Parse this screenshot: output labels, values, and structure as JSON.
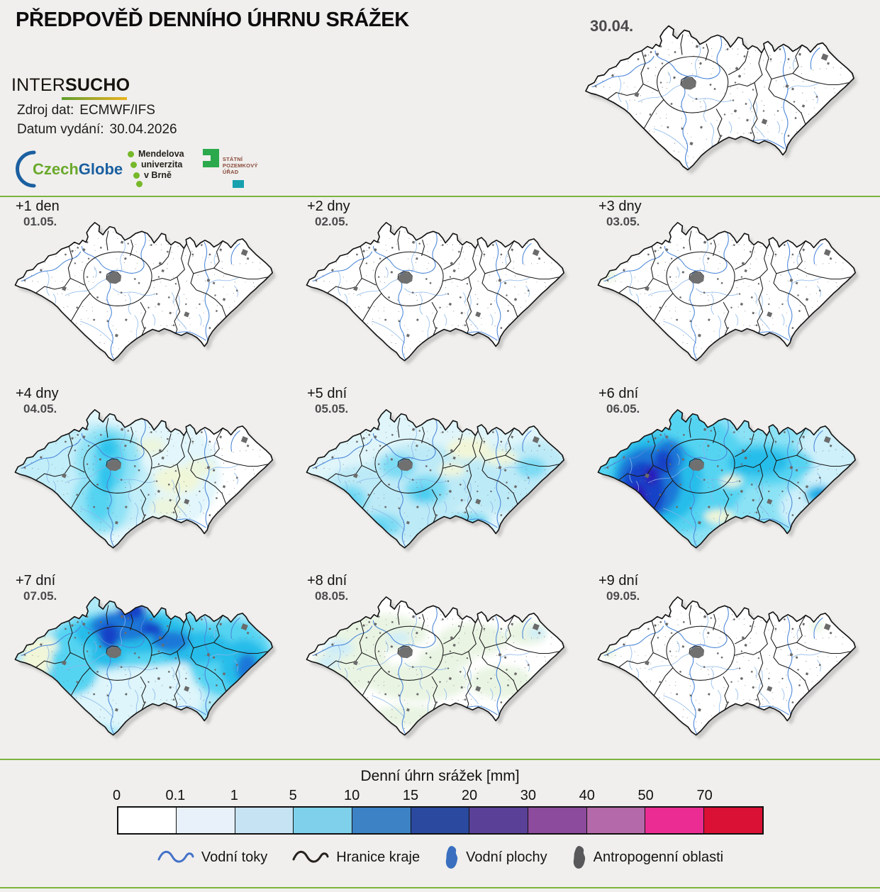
{
  "header": {
    "title": "PŘEDPOVĚĎ DENNÍHO ÚHRNU SRÁŽEK",
    "brand": {
      "inter": "INTER",
      "sucho": "SUCHO"
    },
    "source_label": "Zdroj dat:",
    "source_value": "ECMWF/IFS",
    "issue_label": "Datum vydání:",
    "issue_value": "30.04.2026",
    "base_map_label": "30.04.",
    "partners": {
      "czechglobe": {
        "part1": "Czech",
        "part2": "Globe"
      },
      "mendel": {
        "line1": "Mendelova",
        "line2": "univerzita",
        "line3": "v Brně"
      },
      "spu": {
        "line1": "STÁTNÍ",
        "line2": "POZEMKOVÝ",
        "line3": "ÚŘAD"
      }
    }
  },
  "panels": [
    {
      "offset": "+1 den",
      "date": "01.05."
    },
    {
      "offset": "+2 dny",
      "date": "02.05."
    },
    {
      "offset": "+3 dny",
      "date": "03.05."
    },
    {
      "offset": "+4 dny",
      "date": "04.05."
    },
    {
      "offset": "+5 dní",
      "date": "05.05."
    },
    {
      "offset": "+6 dní",
      "date": "06.05."
    },
    {
      "offset": "+7 dní",
      "date": "07.05."
    },
    {
      "offset": "+8 dní",
      "date": "08.05."
    },
    {
      "offset": "+9 dní",
      "date": "09.05."
    }
  ],
  "legend": {
    "title": "Denní úhrn srážek [mm]",
    "ticks": [
      "0",
      "0.1",
      "1",
      "5",
      "10",
      "15",
      "20",
      "30",
      "40",
      "50",
      "70"
    ],
    "colors": [
      "#ffffff",
      "#e8f1fa",
      "#c6e3f4",
      "#7fd0ea",
      "#3d82c4",
      "#2b4a9f",
      "#5a4197",
      "#8c4b9c",
      "#b469aa",
      "#eb2d93",
      "#da1034"
    ],
    "symbols": [
      {
        "label": "Vodní toky"
      },
      {
        "label": "Hranice kraje"
      },
      {
        "label": "Vodní plochy"
      },
      {
        "label": "Antropogenní oblasti"
      }
    ]
  },
  "colors": {
    "divider_green": "#7cb43e",
    "background": "#f0efed",
    "river_blue": "#4a86d8",
    "border_black": "#1a1a1a",
    "city_gray": "#6b6b6b"
  }
}
